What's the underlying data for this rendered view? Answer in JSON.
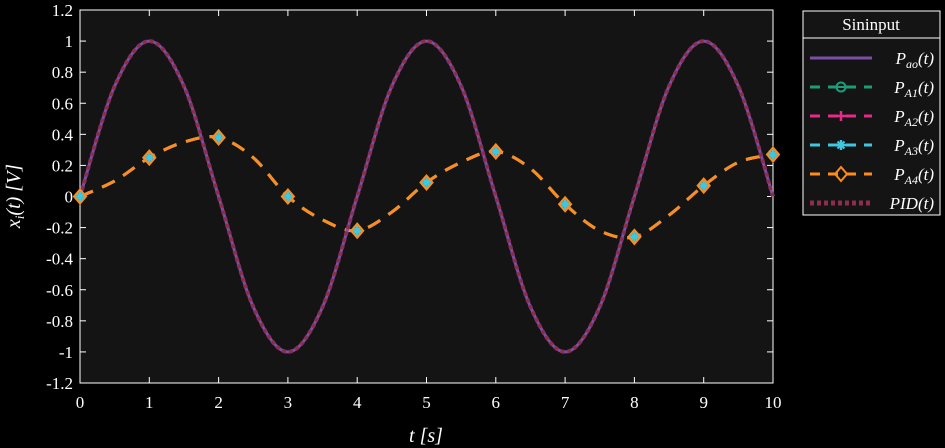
{
  "chart_data": {
    "type": "line",
    "xlabel_main": "t",
    "xlabel_unit": "[s]",
    "ylabel_main": "x",
    "ylabel_sub": "i",
    "ylabel_rest": "(t) [V]",
    "xlim": [
      0,
      10
    ],
    "ylim": [
      -1.2,
      1.2
    ],
    "x_ticks": [
      "0",
      "1",
      "2",
      "3",
      "4",
      "5",
      "6",
      "7",
      "8",
      "9",
      "10"
    ],
    "y_ticks": [
      "-1.2",
      "-1",
      "-0.8",
      "-0.6",
      "-0.4",
      "-0.2",
      "0",
      "0.2",
      "0.4",
      "0.6",
      "0.8",
      "1",
      "1.2"
    ],
    "grid": false,
    "legend_position": "outside-top-right",
    "legend_title": "Sininput",
    "colors": {
      "background": "#141414",
      "pao": "#7a4fa8",
      "pa1": "#1b9e77",
      "pa2": "#e7298a",
      "pa3": "#3ec7e0",
      "pa4": "#ff8c1a",
      "pid": "#8a2d4e"
    },
    "series": [
      {
        "name_main": "P",
        "name_sub": "ao",
        "name_tail": "(t)",
        "key": "pao",
        "style": "solid",
        "marker": "none",
        "x": [
          0,
          0.5,
          1,
          1.5,
          2,
          2.5,
          3,
          3.5,
          4,
          4.5,
          5,
          5.5,
          6,
          6.5,
          7,
          7.5,
          8,
          8.5,
          9,
          9.5,
          10
        ],
        "y": [
          0,
          0.71,
          1,
          0.71,
          0,
          -0.71,
          -1,
          -0.71,
          0,
          0.71,
          1,
          0.71,
          0,
          -0.71,
          -1,
          -0.71,
          0,
          0.71,
          1,
          0.71,
          0
        ]
      },
      {
        "name_main": "P",
        "name_sub": "A1",
        "name_tail": "(t)",
        "key": "pa1",
        "style": "dashed",
        "marker": "circle",
        "x": [
          0,
          0.5,
          1,
          1.5,
          2,
          2.5,
          3,
          3.5,
          4,
          4.5,
          5,
          5.5,
          6,
          6.5,
          7,
          7.5,
          8,
          8.5,
          9,
          9.5,
          10
        ],
        "y": [
          0,
          0.1,
          0.25,
          0.35,
          0.38,
          0.25,
          0,
          -0.15,
          -0.22,
          -0.1,
          0.09,
          0.22,
          0.29,
          0.18,
          -0.05,
          -0.22,
          -0.26,
          -0.12,
          0.07,
          0.22,
          0.27
        ]
      },
      {
        "name_main": "P",
        "name_sub": "A2",
        "name_tail": "(t)",
        "key": "pa2",
        "style": "dashed",
        "marker": "plus",
        "x": [
          0,
          0.5,
          1,
          1.5,
          2,
          2.5,
          3,
          3.5,
          4,
          4.5,
          5,
          5.5,
          6,
          6.5,
          7,
          7.5,
          8,
          8.5,
          9,
          9.5,
          10
        ],
        "y": [
          0,
          0.1,
          0.25,
          0.35,
          0.38,
          0.25,
          0,
          -0.15,
          -0.22,
          -0.1,
          0.09,
          0.22,
          0.29,
          0.18,
          -0.05,
          -0.22,
          -0.26,
          -0.12,
          0.07,
          0.22,
          0.27
        ]
      },
      {
        "name_main": "P",
        "name_sub": "A3",
        "name_tail": "(t)",
        "key": "pa3",
        "style": "dashed",
        "marker": "star",
        "x": [
          0,
          0.5,
          1,
          1.5,
          2,
          2.5,
          3,
          3.5,
          4,
          4.5,
          5,
          5.5,
          6,
          6.5,
          7,
          7.5,
          8,
          8.5,
          9,
          9.5,
          10
        ],
        "y": [
          0,
          0.1,
          0.25,
          0.35,
          0.38,
          0.25,
          0,
          -0.15,
          -0.22,
          -0.1,
          0.09,
          0.22,
          0.29,
          0.18,
          -0.05,
          -0.22,
          -0.26,
          -0.12,
          0.07,
          0.22,
          0.27
        ]
      },
      {
        "name_main": "P",
        "name_sub": "A4",
        "name_tail": "(t)",
        "key": "pa4",
        "style": "dashed",
        "marker": "diamond",
        "x": [
          0,
          0.5,
          1,
          1.5,
          2,
          2.5,
          3,
          3.5,
          4,
          4.5,
          5,
          5.5,
          6,
          6.5,
          7,
          7.5,
          8,
          8.5,
          9,
          9.5,
          10
        ],
        "y": [
          0,
          0.1,
          0.25,
          0.35,
          0.38,
          0.25,
          0,
          -0.15,
          -0.22,
          -0.1,
          0.09,
          0.22,
          0.29,
          0.18,
          -0.05,
          -0.22,
          -0.26,
          -0.12,
          0.07,
          0.22,
          0.27
        ]
      },
      {
        "name_main": "PID",
        "name_sub": "",
        "name_tail": "(t)",
        "key": "pid",
        "style": "dotted",
        "marker": "none",
        "x": [
          0,
          0.5,
          1,
          1.5,
          2,
          2.5,
          3,
          3.5,
          4,
          4.5,
          5,
          5.5,
          6,
          6.5,
          7,
          7.5,
          8,
          8.5,
          9,
          9.5,
          10
        ],
        "y": [
          0,
          0.71,
          1,
          0.71,
          0,
          -0.71,
          -1,
          -0.71,
          0,
          0.71,
          1,
          0.71,
          0,
          -0.71,
          -1,
          -0.71,
          0,
          0.71,
          1,
          0.71,
          0
        ]
      }
    ],
    "marker_points": {
      "x": [
        0,
        1,
        2,
        3,
        4,
        5,
        6,
        7,
        8,
        9,
        10
      ],
      "y": [
        0,
        0.25,
        0.38,
        0,
        -0.22,
        0.09,
        0.29,
        -0.05,
        -0.26,
        0.07,
        0.27
      ]
    }
  }
}
